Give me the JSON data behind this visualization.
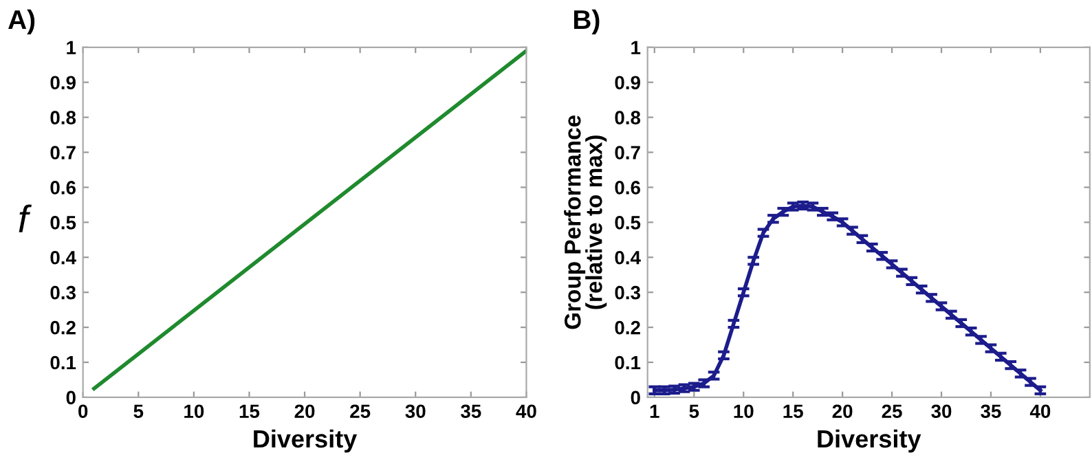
{
  "chart_data": [
    {
      "type": "line",
      "title": "A)",
      "xlabel": "Diversity",
      "ylabel": "f",
      "x": [
        1,
        40
      ],
      "series": [
        {
          "color": "#1f8a2e",
          "values": [
            0.025,
            0.99
          ]
        }
      ],
      "xlim": [
        0,
        40
      ],
      "ylim": [
        0,
        1
      ],
      "xticks": [
        0,
        5,
        10,
        15,
        20,
        25,
        30,
        35,
        40
      ],
      "yticks": [
        0,
        0.1,
        0.2,
        0.3,
        0.4,
        0.5,
        0.6,
        0.7,
        0.8,
        0.9,
        1
      ],
      "grid": false,
      "legend": false,
      "marker": "none",
      "line_style": "solid"
    },
    {
      "type": "line",
      "title": "B)",
      "xlabel": "Diversity",
      "ylabel": "Group Performance\n(relative to max)",
      "x": [
        1,
        2,
        3,
        4,
        5,
        6,
        7,
        8,
        9,
        10,
        11,
        12,
        13,
        14,
        15,
        16,
        17,
        18,
        19,
        20,
        21,
        22,
        23,
        24,
        25,
        26,
        27,
        28,
        29,
        30,
        31,
        32,
        33,
        34,
        35,
        36,
        37,
        38,
        39,
        40
      ],
      "series": [
        {
          "color": "#1c1c8c",
          "values": [
            0.02,
            0.02,
            0.022,
            0.026,
            0.03,
            0.04,
            0.062,
            0.12,
            0.21,
            0.3,
            0.39,
            0.47,
            0.51,
            0.53,
            0.545,
            0.548,
            0.545,
            0.53,
            0.517,
            0.5,
            0.476,
            0.452,
            0.428,
            0.404,
            0.38,
            0.356,
            0.332,
            0.308,
            0.284,
            0.26,
            0.236,
            0.212,
            0.188,
            0.164,
            0.14,
            0.116,
            0.092,
            0.068,
            0.044,
            0.02
          ],
          "errors": [
            0.01,
            0.01,
            0.01,
            0.01,
            0.01,
            0.01,
            0.01,
            0.01,
            0.01,
            0.01,
            0.01,
            0.01,
            0.01,
            0.01,
            0.01,
            0.01,
            0.01,
            0.01,
            0.01,
            0.01,
            0.01,
            0.01,
            0.01,
            0.01,
            0.01,
            0.01,
            0.01,
            0.01,
            0.01,
            0.01,
            0.01,
            0.01,
            0.01,
            0.01,
            0.01,
            0.01,
            0.01,
            0.01,
            0.01,
            0.01
          ]
        }
      ],
      "xlim": [
        0.3,
        45
      ],
      "ylim": [
        0,
        1
      ],
      "xticks": [
        1,
        5,
        10,
        15,
        20,
        25,
        30,
        35,
        40
      ],
      "yticks": [
        0,
        0.1,
        0.2,
        0.3,
        0.4,
        0.5,
        0.6,
        0.7,
        0.8,
        0.9,
        1
      ],
      "grid": false,
      "legend": false,
      "marker": "none",
      "line_style": "solid"
    }
  ]
}
